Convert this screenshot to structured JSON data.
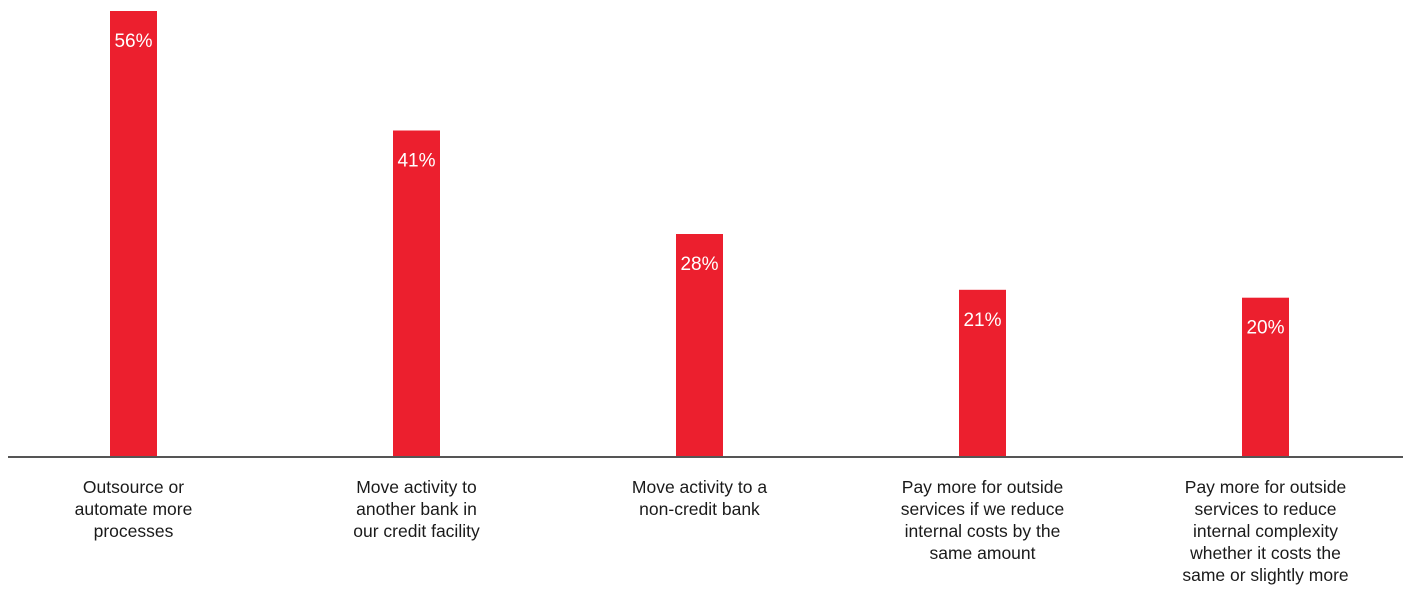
{
  "chart_data": {
    "type": "bar",
    "categories": [
      [
        "Outsource or",
        "automate more",
        "processes"
      ],
      [
        "Move activity to",
        "another bank in",
        "our credit facility"
      ],
      [
        "Move activity to a",
        "non-credit bank"
      ],
      [
        "Pay more for outside",
        "services if we reduce",
        "internal costs by the",
        "same amount"
      ],
      [
        "Pay more for outside",
        "services to reduce",
        "internal complexity",
        "whether it costs the",
        "same or slightly more"
      ]
    ],
    "values": [
      56,
      41,
      28,
      21,
      20
    ],
    "data_labels": [
      "56%",
      "41%",
      "28%",
      "21%",
      "20%"
    ],
    "ylim": [
      0,
      56
    ],
    "grid": false,
    "colors": {
      "bar": "#ec1f2e",
      "data_label": "#ffffff",
      "axis": "#555555",
      "category_text": "#1a1a1a"
    }
  }
}
